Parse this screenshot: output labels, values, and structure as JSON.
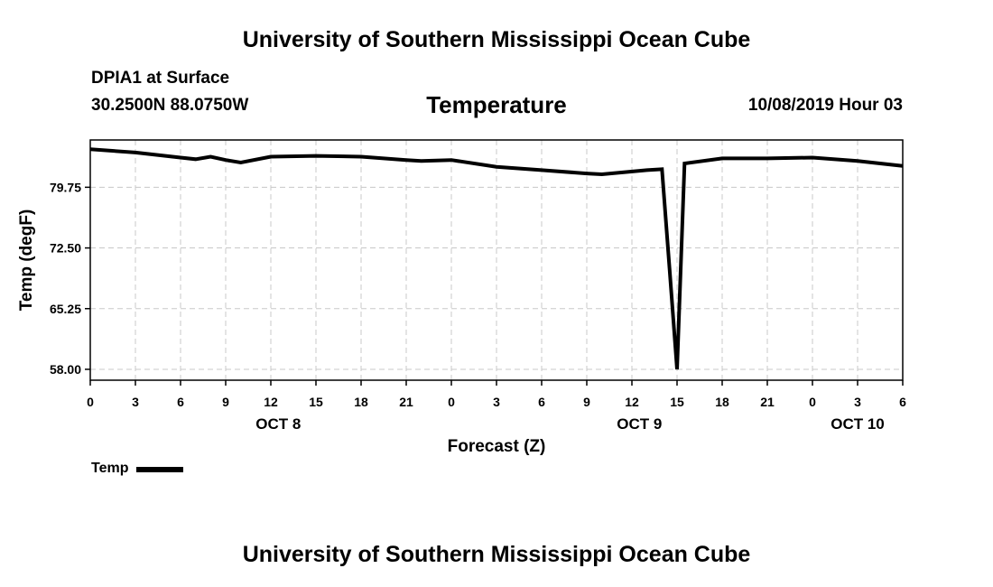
{
  "header": {
    "org_title": "University of Southern Mississippi Ocean Cube",
    "station": "DPIA1 at Surface",
    "coords": "30.2500N 88.0750W",
    "title": "Temperature",
    "run_time": "10/08/2019 Hour 03"
  },
  "footer": {
    "org_title": "University of Southern Mississippi Ocean Cube"
  },
  "legend": {
    "label": "Temp"
  },
  "colors": {
    "line": "#000000",
    "grid": "#c8c8c8",
    "axis": "#000000"
  },
  "chart_data": {
    "type": "line",
    "title": "Temperature",
    "xlabel": "Forecast (Z)",
    "ylabel": "Temp (degF)",
    "x_unit": "hours since OCT 8 00Z",
    "xlim": [
      0,
      54
    ],
    "ylim": [
      56.7,
      85.4
    ],
    "yticks": [
      58.0,
      65.25,
      72.5,
      79.75
    ],
    "ytick_labels": [
      "58.00",
      "65.25",
      "72.50",
      "79.75"
    ],
    "xticks": [
      0,
      3,
      6,
      9,
      12,
      15,
      18,
      21,
      24,
      27,
      30,
      33,
      36,
      39,
      42,
      45,
      48,
      51,
      54
    ],
    "xtick_labels": [
      "0",
      "3",
      "6",
      "9",
      "12",
      "15",
      "18",
      "21",
      "0",
      "3",
      "6",
      "9",
      "12",
      "15",
      "18",
      "21",
      "0",
      "3",
      "6"
    ],
    "day_labels": [
      {
        "x": 12.5,
        "label": "OCT 8"
      },
      {
        "x": 36.5,
        "label": "OCT 9"
      },
      {
        "x": 51,
        "label": "OCT 10"
      }
    ],
    "grid": true,
    "series": [
      {
        "name": "Temp",
        "x": [
          0,
          3,
          6,
          7,
          8,
          9,
          10,
          12,
          15,
          18,
          21,
          22,
          24,
          27,
          30,
          33,
          34,
          37,
          38,
          38.5,
          39,
          39.5,
          42,
          45,
          48,
          51,
          54
        ],
        "y": [
          84.3,
          83.9,
          83.3,
          83.1,
          83.4,
          83.0,
          82.7,
          83.4,
          83.5,
          83.4,
          83.0,
          82.9,
          83.0,
          82.2,
          81.8,
          81.4,
          81.3,
          81.8,
          81.9,
          70.0,
          58.0,
          82.6,
          83.2,
          83.2,
          83.3,
          82.9,
          82.3
        ]
      }
    ]
  }
}
